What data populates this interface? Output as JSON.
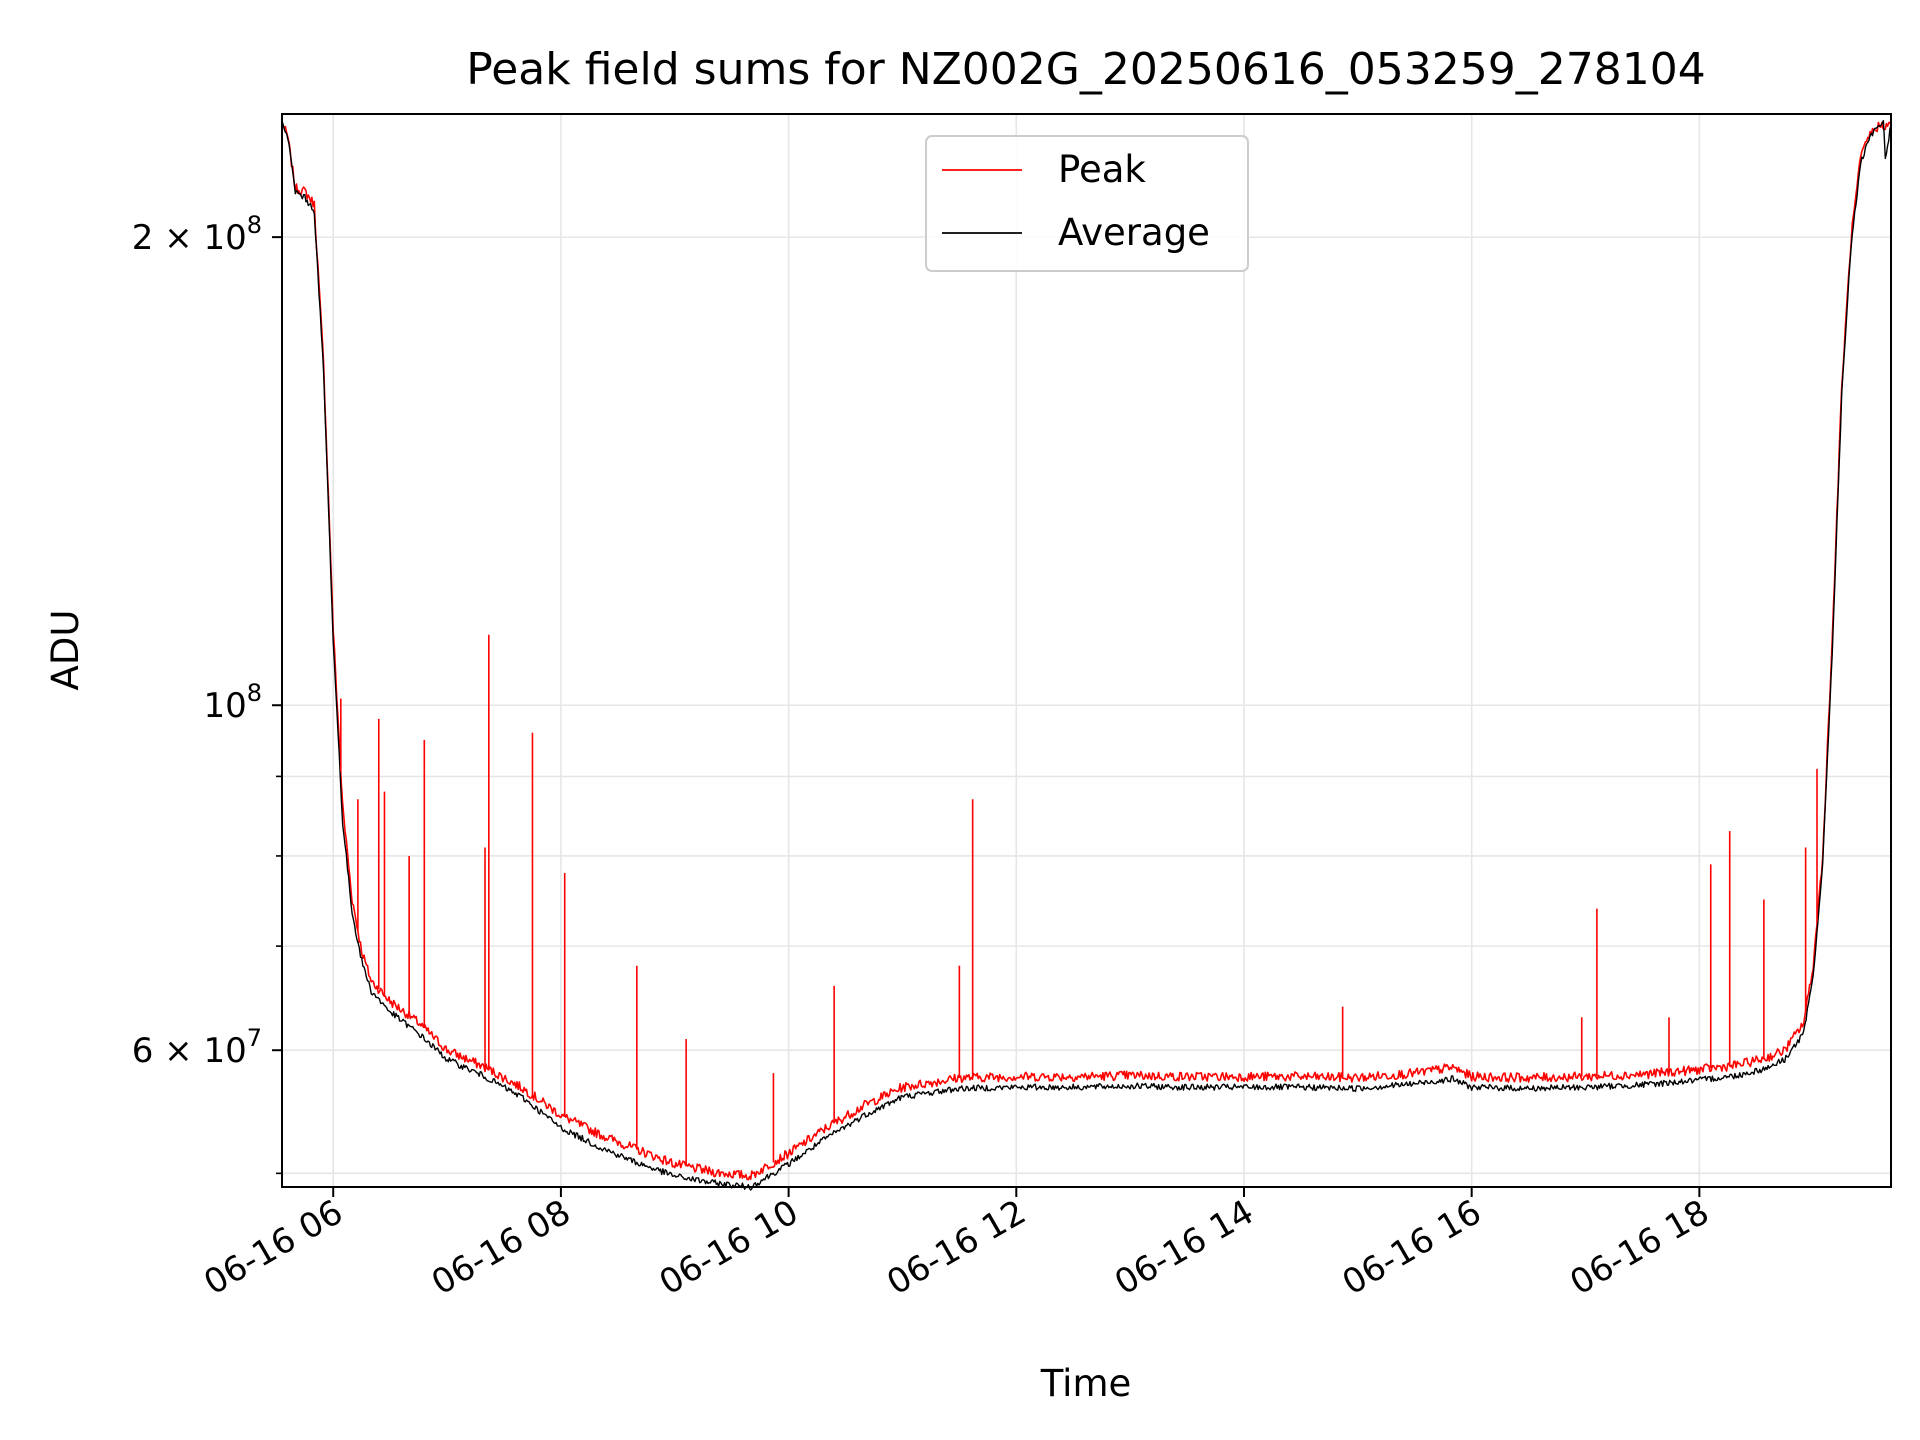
{
  "chart_data": {
    "type": "line",
    "title": "Peak field sums for NZ002G_20250616_053259_278104",
    "xlabel": "Time",
    "ylabel": "ADU",
    "yscale": "log",
    "grid": true,
    "legend_position": "top-center",
    "xlim": [
      "2025-06-16 05:33",
      "2025-06-16 19:41"
    ],
    "ylim": [
      49000000,
      240000000
    ],
    "x_ticks": [
      {
        "value": "2025-06-16 06:00",
        "label": "06-16 06"
      },
      {
        "value": "2025-06-16 08:00",
        "label": "06-16 08"
      },
      {
        "value": "2025-06-16 10:00",
        "label": "06-16 10"
      },
      {
        "value": "2025-06-16 12:00",
        "label": "06-16 12"
      },
      {
        "value": "2025-06-16 14:00",
        "label": "06-16 14"
      },
      {
        "value": "2025-06-16 16:00",
        "label": "06-16 16"
      },
      {
        "value": "2025-06-16 18:00",
        "label": "06-16 18"
      }
    ],
    "y_ticks": [
      {
        "value": 200000000,
        "label": "2 × 10⁸",
        "mantissa": "2 × 10",
        "exp": "8"
      },
      {
        "value": 100000000,
        "label": "10⁸",
        "mantissa": "10",
        "exp": "8"
      },
      {
        "value": 60000000,
        "label": "6 × 10⁷",
        "mantissa": "6 × 10",
        "exp": "7"
      }
    ],
    "y_minor_ticks": [
      50000000,
      70000000,
      80000000,
      90000000
    ],
    "series": [
      {
        "name": "Peak",
        "color": "#ff0000",
        "x": [
          "2025-06-16 05:33",
          "2025-06-16 05:36",
          "2025-06-16 05:40",
          "2025-06-16 05:45",
          "2025-06-16 05:50",
          "2025-06-16 05:55",
          "2025-06-16 06:00",
          "2025-06-16 06:05",
          "2025-06-16 06:10",
          "2025-06-16 06:15",
          "2025-06-16 06:20",
          "2025-06-16 06:30",
          "2025-06-16 06:45",
          "2025-06-16 07:00",
          "2025-06-16 07:20",
          "2025-06-16 07:40",
          "2025-06-16 08:00",
          "2025-06-16 08:20",
          "2025-06-16 08:40",
          "2025-06-16 09:00",
          "2025-06-16 09:20",
          "2025-06-16 09:40",
          "2025-06-16 10:00",
          "2025-06-16 10:20",
          "2025-06-16 10:40",
          "2025-06-16 11:00",
          "2025-06-16 11:30",
          "2025-06-16 12:00",
          "2025-06-16 12:30",
          "2025-06-16 13:00",
          "2025-06-16 13:30",
          "2025-06-16 14:00",
          "2025-06-16 14:30",
          "2025-06-16 15:00",
          "2025-06-16 15:30",
          "2025-06-16 15:50",
          "2025-06-16 16:00",
          "2025-06-16 16:30",
          "2025-06-16 17:00",
          "2025-06-16 17:30",
          "2025-06-16 18:00",
          "2025-06-16 18:20",
          "2025-06-16 18:35",
          "2025-06-16 18:45",
          "2025-06-16 18:55",
          "2025-06-16 19:00",
          "2025-06-16 19:05",
          "2025-06-16 19:10",
          "2025-06-16 19:15",
          "2025-06-16 19:20",
          "2025-06-16 19:25",
          "2025-06-16 19:30",
          "2025-06-16 19:35",
          "2025-06-16 19:41"
        ],
        "y": [
          237000000,
          232000000,
          215000000,
          214000000,
          210000000,
          165000000,
          112000000,
          86000000,
          75000000,
          69500000,
          66500000,
          64500000,
          62500000,
          60000000,
          58500000,
          56700000,
          54500000,
          53000000,
          51800000,
          50700000,
          50100000,
          49800000,
          51500000,
          53500000,
          55300000,
          56800000,
          57600000,
          57700000,
          57700000,
          57800000,
          57700000,
          57700000,
          57700000,
          57600000,
          58000000,
          58500000,
          57700000,
          57600000,
          57700000,
          57900000,
          58300000,
          58700000,
          59300000,
          60000000,
          62500000,
          68000000,
          80000000,
          110000000,
          160000000,
          200000000,
          225000000,
          233000000,
          236000000,
          236000000
        ]
      },
      {
        "name": "Average",
        "color": "#000000",
        "x": [
          "2025-06-16 05:33",
          "2025-06-16 05:36",
          "2025-06-16 05:40",
          "2025-06-16 05:45",
          "2025-06-16 05:50",
          "2025-06-16 05:55",
          "2025-06-16 06:00",
          "2025-06-16 06:05",
          "2025-06-16 06:10",
          "2025-06-16 06:15",
          "2025-06-16 06:20",
          "2025-06-16 06:30",
          "2025-06-16 06:45",
          "2025-06-16 07:00",
          "2025-06-16 07:20",
          "2025-06-16 07:40",
          "2025-06-16 08:00",
          "2025-06-16 08:20",
          "2025-06-16 08:40",
          "2025-06-16 09:00",
          "2025-06-16 09:20",
          "2025-06-16 09:40",
          "2025-06-16 10:00",
          "2025-06-16 10:20",
          "2025-06-16 10:40",
          "2025-06-16 11:00",
          "2025-06-16 11:30",
          "2025-06-16 12:00",
          "2025-06-16 12:30",
          "2025-06-16 13:00",
          "2025-06-16 13:30",
          "2025-06-16 14:00",
          "2025-06-16 14:30",
          "2025-06-16 15:00",
          "2025-06-16 15:30",
          "2025-06-16 15:50",
          "2025-06-16 16:00",
          "2025-06-16 16:30",
          "2025-06-16 17:00",
          "2025-06-16 17:30",
          "2025-06-16 18:00",
          "2025-06-16 18:20",
          "2025-06-16 18:35",
          "2025-06-16 18:45",
          "2025-06-16 18:55",
          "2025-06-16 19:00",
          "2025-06-16 19:05",
          "2025-06-16 19:10",
          "2025-06-16 19:15",
          "2025-06-16 19:20",
          "2025-06-16 19:25",
          "2025-06-16 19:30",
          "2025-06-16 19:35",
          "2025-06-16 19:37",
          "2025-06-16 19:38",
          "2025-06-16 19:41"
        ],
        "y": [
          237000000,
          232000000,
          214000000,
          212000000,
          208000000,
          163000000,
          110000000,
          84000000,
          73500000,
          68500000,
          65500000,
          63500000,
          61500000,
          59200000,
          57700000,
          55900000,
          53500000,
          52000000,
          50800000,
          49800000,
          49300000,
          49000000,
          50700000,
          52700000,
          54500000,
          56000000,
          56700000,
          56800000,
          56800000,
          56900000,
          56800000,
          56800000,
          56800000,
          56700000,
          57100000,
          57500000,
          56800000,
          56700000,
          56800000,
          57000000,
          57400000,
          57800000,
          58400000,
          59200000,
          61500000,
          67000000,
          79000000,
          108000000,
          158000000,
          198000000,
          223000000,
          232000000,
          236000000,
          237000000,
          225000000,
          236000000
        ]
      }
    ],
    "peak_spikes": [
      {
        "x": "2025-06-16 06:04",
        "y": 101000000
      },
      {
        "x": "2025-06-16 06:13",
        "y": 87000000
      },
      {
        "x": "2025-06-16 06:24",
        "y": 98000000
      },
      {
        "x": "2025-06-16 06:27",
        "y": 88000000
      },
      {
        "x": "2025-06-16 06:40",
        "y": 80000000
      },
      {
        "x": "2025-06-16 06:48",
        "y": 95000000
      },
      {
        "x": "2025-06-16 07:20",
        "y": 81000000
      },
      {
        "x": "2025-06-16 07:22",
        "y": 111000000
      },
      {
        "x": "2025-06-16 07:45",
        "y": 96000000
      },
      {
        "x": "2025-06-16 08:02",
        "y": 78000000
      },
      {
        "x": "2025-06-16 08:40",
        "y": 68000000
      },
      {
        "x": "2025-06-16 09:06",
        "y": 61000000
      },
      {
        "x": "2025-06-16 09:52",
        "y": 58000000
      },
      {
        "x": "2025-06-16 10:24",
        "y": 66000000
      },
      {
        "x": "2025-06-16 11:30",
        "y": 68000000
      },
      {
        "x": "2025-06-16 11:37",
        "y": 87000000
      },
      {
        "x": "2025-06-16 14:52",
        "y": 64000000
      },
      {
        "x": "2025-06-16 16:58",
        "y": 63000000
      },
      {
        "x": "2025-06-16 17:06",
        "y": 74000000
      },
      {
        "x": "2025-06-16 17:44",
        "y": 63000000
      },
      {
        "x": "2025-06-16 18:06",
        "y": 79000000
      },
      {
        "x": "2025-06-16 18:16",
        "y": 83000000
      },
      {
        "x": "2025-06-16 18:34",
        "y": 75000000
      },
      {
        "x": "2025-06-16 18:56",
        "y": 81000000
      },
      {
        "x": "2025-06-16 19:02",
        "y": 91000000
      }
    ]
  }
}
